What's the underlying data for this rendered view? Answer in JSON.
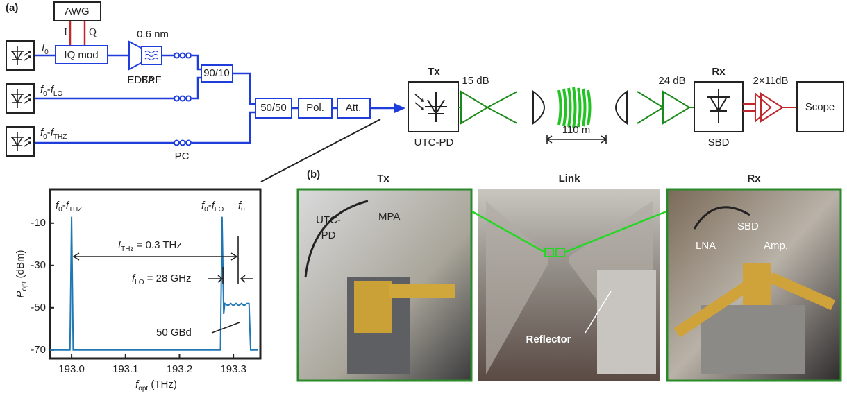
{
  "panel_a": {
    "label": "(a)",
    "awg": "AWG",
    "i": "I",
    "q": "Q",
    "laser1": [
      "f",
      "0"
    ],
    "iq_mod": "IQ mod",
    "bpf_width": "0.6 nm",
    "edfa": "EDFA",
    "bpf": "BPF",
    "coupler_90_10": "90/10",
    "laser2": [
      "f",
      "0",
      "-",
      "f",
      "LO"
    ],
    "laser3": [
      "f",
      "0",
      "-",
      "f",
      "THZ"
    ],
    "pc": "PC",
    "coupler_50_50": "50/50",
    "pol": "Pol.",
    "att": "Att.",
    "tx": "Tx",
    "tx_gain": "15 dB",
    "utc_pd": "UTC-PD",
    "distance": "110 m",
    "rx_gain": "24 dB",
    "rx": "Rx",
    "amp_gain": "2×11dB",
    "scope": "Scope",
    "sbd": "SBD"
  },
  "chart_data": {
    "type": "line",
    "x": [
      192.96,
      192.997,
      193.0,
      193.003,
      193.276,
      193.279,
      193.282,
      193.284,
      193.29,
      193.295,
      193.3,
      193.305,
      193.31,
      193.315,
      193.32,
      193.325,
      193.329,
      193.332,
      193.345
    ],
    "series": [
      {
        "color": "#1f77b4",
        "values": [
          -70,
          -70,
          -7,
          -70,
          -70,
          -7,
          -53,
          -48,
          -49,
          -48,
          -49,
          -48,
          -49,
          -48,
          -49,
          -48,
          -48,
          -70,
          -70
        ]
      }
    ],
    "xlim": [
      192.96,
      193.35
    ],
    "ylim": [
      -74,
      6
    ],
    "xticks": [
      {
        "value": 193.0,
        "label": "193.0"
      },
      193.1,
      193.2,
      193.3
    ],
    "yticks": [
      -10,
      -30,
      -50,
      -70
    ],
    "xlabel": [
      "f",
      "opt",
      " (THz)"
    ],
    "ylabel": [
      "P",
      "opt",
      " (dBm)"
    ],
    "annotations": {
      "f0_fthz": [
        "f",
        "0",
        "-",
        "f",
        "THZ"
      ],
      "f0_flo": [
        "f",
        "0",
        "-",
        "f",
        "LO"
      ],
      "f0": [
        "f",
        "0"
      ],
      "fthz": [
        "f",
        "THz",
        " = 0.3 THz"
      ],
      "flo": [
        "f",
        "LO",
        " = 28 GHz"
      ],
      "baud": "50 GBd"
    }
  },
  "panel_b": {
    "label": "(b)",
    "tx": {
      "title": "Tx",
      "labels": [
        "UTC-",
        "PD",
        "MPA"
      ]
    },
    "link": {
      "title": "Link",
      "labels": [
        "Reflector"
      ]
    },
    "rx": {
      "title": "Rx",
      "labels": [
        "LNA",
        "SBD",
        "Amp."
      ]
    }
  }
}
